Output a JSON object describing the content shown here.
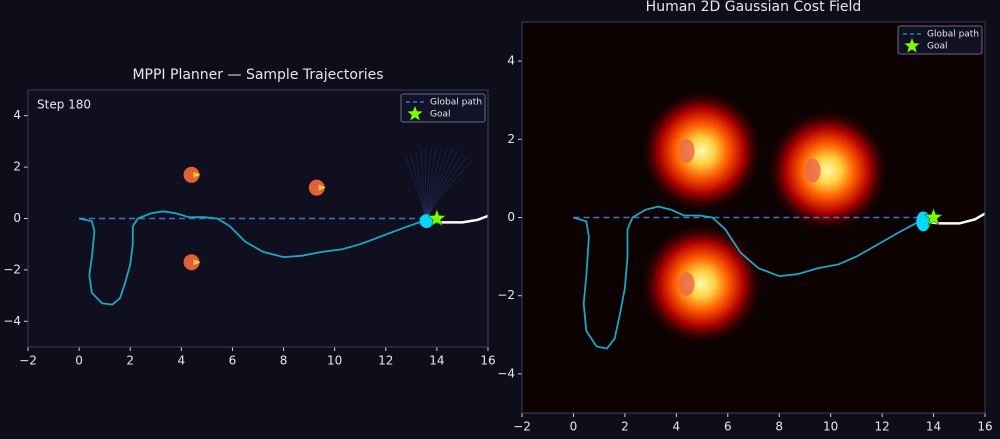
{
  "chart_data": [
    {
      "type": "trajectory",
      "title": "MPPI Planner — Sample Trajectories",
      "annotation": "Step 180",
      "xlim": [
        -2,
        16
      ],
      "ylim": [
        -5,
        5
      ],
      "xticks": [
        {
          "value": -2,
          "label": "−2"
        },
        0,
        2,
        4,
        6,
        8,
        10,
        12,
        14,
        16
      ],
      "yticks": [
        {
          "value": -4,
          "label": "−4"
        },
        {
          "value": -2,
          "label": "−2"
        },
        0,
        2,
        4
      ],
      "legend": "upper right",
      "heatmap": false,
      "series": [
        {
          "name": "Global path",
          "color": "#3f74c9",
          "x": [
            0,
            14
          ],
          "y": [
            0,
            0
          ]
        },
        {
          "name": "Goal",
          "color": "#7cfc00",
          "x": [
            14
          ],
          "y": [
            0
          ]
        }
      ],
      "trajectory": {
        "color": "#1aa6c4",
        "x": [
          0,
          0.5,
          0.6,
          0.5,
          0.4,
          0.5,
          0.9,
          1.3,
          1.6,
          1.8,
          2.0,
          2.1,
          2.1,
          2.3,
          2.8,
          3.3,
          3.8,
          4.3,
          4.9,
          5.4,
          5.9,
          6.5,
          7.2,
          8.0,
          8.7,
          9.5,
          10.3,
          11.0,
          11.8,
          12.6,
          13.3,
          13.6
        ],
        "y": [
          0,
          -0.1,
          -0.5,
          -1.5,
          -2.2,
          -2.9,
          -3.3,
          -3.35,
          -3.1,
          -2.5,
          -1.8,
          -1.0,
          -0.3,
          0.0,
          0.2,
          0.28,
          0.2,
          0.05,
          0.05,
          0.0,
          -0.3,
          -0.9,
          -1.3,
          -1.5,
          -1.45,
          -1.3,
          -1.2,
          -1.0,
          -0.7,
          -0.4,
          -0.15,
          -0.1
        ]
      },
      "plan": {
        "color": "#ffffff",
        "x": [
          13.6,
          14.2,
          15.0,
          15.6,
          16.0
        ],
        "y": [
          -0.1,
          -0.15,
          -0.15,
          -0.05,
          0.1
        ]
      },
      "robot": {
        "color": "#00d8ff",
        "x": 13.6,
        "y": -0.1
      },
      "humans": {
        "color": "#e0603a",
        "x": [
          4.4,
          9.3,
          4.4
        ],
        "y": [
          1.7,
          1.2,
          -1.7
        ]
      }
    },
    {
      "type": "trajectory",
      "title": "Human 2D Gaussian Cost Field",
      "xlim": [
        -2,
        16
      ],
      "ylim": [
        -5,
        5
      ],
      "xticks": [
        {
          "value": -2,
          "label": "−2"
        },
        0,
        2,
        4,
        6,
        8,
        10,
        12,
        14,
        16
      ],
      "yticks": [
        {
          "value": -4,
          "label": "−4"
        },
        {
          "value": -2,
          "label": "−2"
        },
        0,
        2,
        4
      ],
      "legend": "upper right",
      "heatmap": true,
      "series": [
        {
          "name": "Global path",
          "color": "#3f74c9",
          "x": [
            0,
            14
          ],
          "y": [
            0,
            0
          ]
        },
        {
          "name": "Goal",
          "color": "#7cfc00",
          "x": [
            14
          ],
          "y": [
            0
          ]
        }
      ],
      "trajectory": {
        "color": "#1aa6c4",
        "x": [
          0,
          0.5,
          0.6,
          0.5,
          0.4,
          0.5,
          0.9,
          1.3,
          1.6,
          1.8,
          2.0,
          2.1,
          2.1,
          2.3,
          2.8,
          3.3,
          3.8,
          4.3,
          4.9,
          5.4,
          5.9,
          6.5,
          7.2,
          8.0,
          8.7,
          9.5,
          10.3,
          11.0,
          11.8,
          12.6,
          13.3,
          13.6
        ],
        "y": [
          0,
          -0.1,
          -0.5,
          -1.5,
          -2.2,
          -2.9,
          -3.3,
          -3.35,
          -3.1,
          -2.5,
          -1.8,
          -1.0,
          -0.3,
          0.0,
          0.2,
          0.28,
          0.2,
          0.05,
          0.05,
          0.0,
          -0.3,
          -0.9,
          -1.3,
          -1.5,
          -1.45,
          -1.3,
          -1.2,
          -1.0,
          -0.7,
          -0.4,
          -0.15,
          -0.1
        ]
      },
      "plan": {
        "color": "#ffffff",
        "x": [
          13.6,
          14.2,
          15.0,
          15.6,
          16.0
        ],
        "y": [
          -0.1,
          -0.15,
          -0.15,
          -0.05,
          0.1
        ]
      },
      "robot": {
        "color": "#00d8ff",
        "x": 13.6,
        "y": -0.1
      },
      "humans": {
        "color": "#e8664a",
        "x": [
          4.4,
          9.3,
          4.4
        ],
        "y": [
          1.7,
          1.2,
          -1.7
        ]
      }
    }
  ]
}
